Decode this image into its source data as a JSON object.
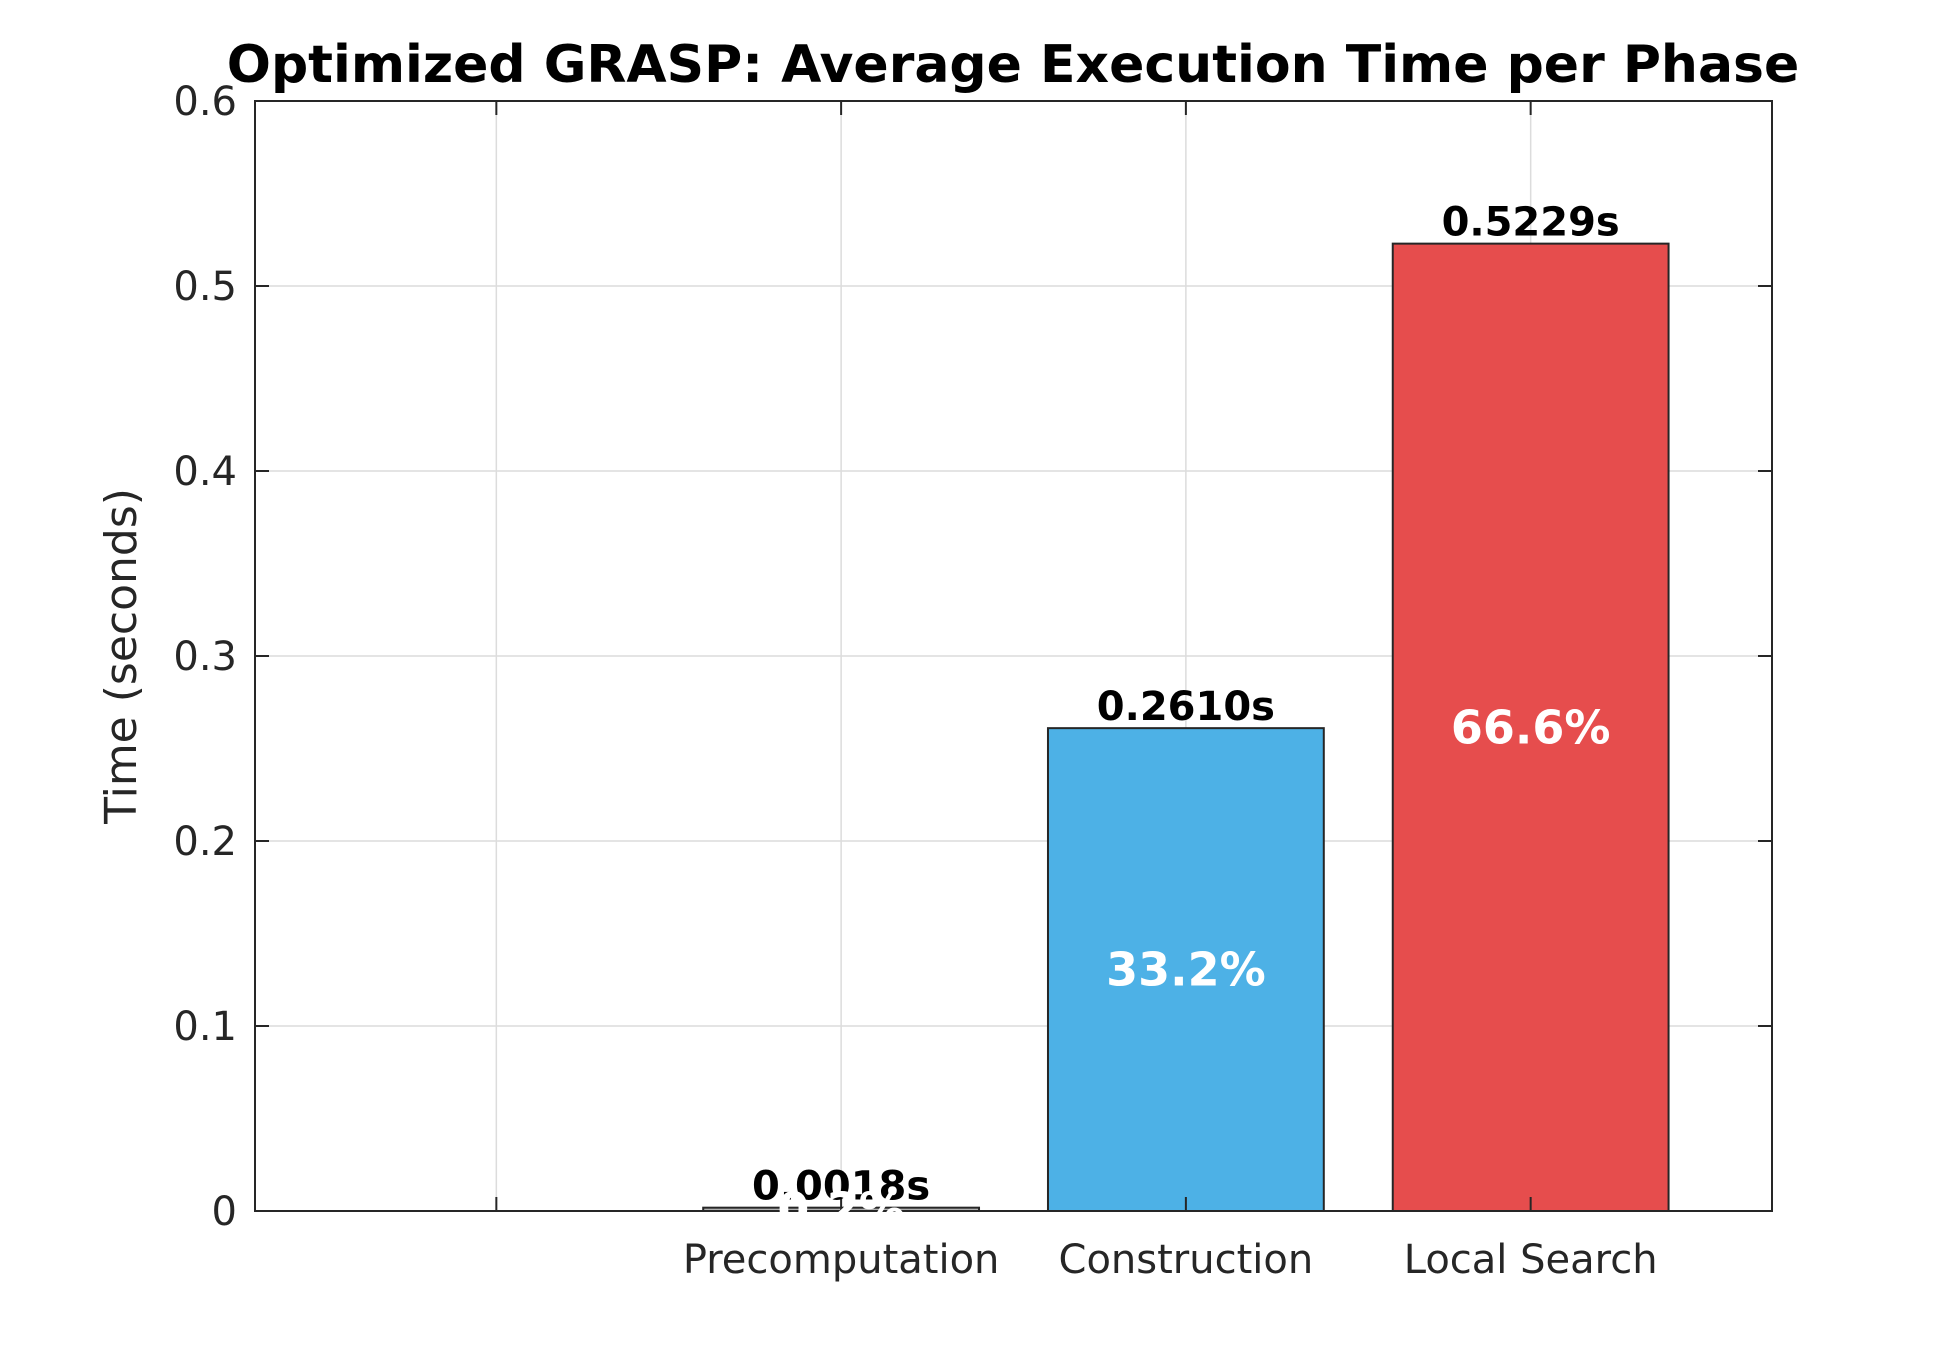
{
  "chart_data": {
    "type": "bar",
    "title": "Optimized GRASP: Average Execution Time per Phase",
    "xlabel": "",
    "ylabel": "Time (seconds)",
    "categories": [
      "Precomputation",
      "Construction",
      "Local Search"
    ],
    "values": [
      0.0018,
      0.261,
      0.5229
    ],
    "value_labels": [
      "0.0018s",
      "0.2610s",
      "0.5229s"
    ],
    "percent_labels": [
      "0.2%",
      "33.2%",
      "66.6%"
    ],
    "colors": [
      "#b0b0b0",
      "#4db1e6",
      "#e64d4d"
    ],
    "ylim": [
      0,
      0.6
    ],
    "yticks": [
      0,
      0.1,
      0.2,
      0.3,
      0.4,
      0.5,
      0.6
    ],
    "ytick_labels": [
      "0",
      "0.1",
      "0.2",
      "0.3",
      "0.4",
      "0.5",
      "0.6"
    ],
    "x_grid_positions": [
      0,
      1,
      2,
      3
    ],
    "xlim": [
      -0.7,
      3.7
    ],
    "grid": true
  }
}
